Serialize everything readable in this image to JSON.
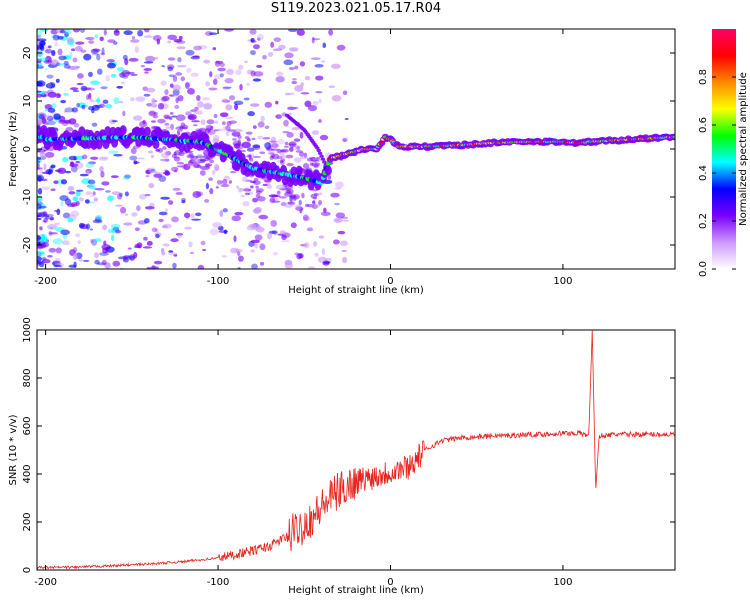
{
  "chart_data": [
    {
      "type": "heatmap",
      "title": "S119.2023.021.05.17.R04",
      "xlabel": "Height of straight line (km)",
      "ylabel": "Frequency (Hz)",
      "xlim": [
        -205,
        165
      ],
      "ylim": [
        -25,
        25
      ],
      "x_ticks": [
        -200,
        -100,
        0,
        100
      ],
      "y_ticks": [
        -20,
        -10,
        0,
        10,
        20
      ],
      "colorbar": {
        "label": "Normalized spectral amplitude",
        "range": [
          0.0,
          1.0
        ],
        "ticks": [
          "0.0",
          "0.2",
          "0.4",
          "0.6",
          "0.8"
        ],
        "colors": [
          "#ffffff",
          "#cc99ff",
          "#7a00ff",
          "#0000ff",
          "#00ffff",
          "#00ff00",
          "#ffff00",
          "#ff8800",
          "#ff0000",
          "#ff0066"
        ]
      },
      "ridge": [
        {
          "x": -200,
          "y": 2
        },
        {
          "x": -150,
          "y": 2.5
        },
        {
          "x": -130,
          "y": 2
        },
        {
          "x": -110,
          "y": 1.5
        },
        {
          "x": -95,
          "y": -1
        },
        {
          "x": -80,
          "y": -4
        },
        {
          "x": -65,
          "y": -5
        },
        {
          "x": -50,
          "y": -6
        },
        {
          "x": -40,
          "y": -7
        },
        {
          "x": -35,
          "y": -2
        },
        {
          "x": -25,
          "y": -1
        },
        {
          "x": -15,
          "y": 0
        },
        {
          "x": -8,
          "y": 0
        },
        {
          "x": -3,
          "y": 2.5
        },
        {
          "x": 0,
          "y": 2
        },
        {
          "x": 5,
          "y": 0.5
        },
        {
          "x": 20,
          "y": 0.5
        },
        {
          "x": 40,
          "y": 0.8
        },
        {
          "x": 60,
          "y": 1.3
        },
        {
          "x": 80,
          "y": 1.5
        },
        {
          "x": 100,
          "y": 1.5
        },
        {
          "x": 110,
          "y": 1.2
        },
        {
          "x": 115,
          "y": 1.5
        },
        {
          "x": 130,
          "y": 1.8
        },
        {
          "x": 150,
          "y": 2.2
        },
        {
          "x": 165,
          "y": 2.5
        }
      ],
      "branch": [
        {
          "x": -60,
          "y": 7
        },
        {
          "x": -50,
          "y": 4
        },
        {
          "x": -42,
          "y": 0
        },
        {
          "x": -38,
          "y": -3
        }
      ]
    },
    {
      "type": "line",
      "xlabel": "Height of straight line (km)",
      "ylabel": "SNR (10 * v/v)",
      "xlim": [
        -205,
        165
      ],
      "ylim": [
        0,
        1000
      ],
      "x_ticks": [
        -200,
        -100,
        0,
        100
      ],
      "y_ticks": [
        0,
        200,
        400,
        600,
        800,
        1000
      ],
      "color": "#e8231f",
      "series": [
        {
          "x": [
            -205,
            -180,
            -160,
            -140,
            -120,
            -100,
            -80,
            -70,
            -60,
            -50,
            -45,
            -40,
            -35,
            -30,
            -25,
            -20,
            -15,
            -10,
            -5,
            0,
            5,
            10,
            15,
            20,
            25,
            30,
            40,
            50,
            60,
            70,
            80,
            90,
            100,
            110,
            115,
            117,
            119,
            121,
            125,
            130,
            140,
            150,
            160,
            165
          ],
          "y": [
            10,
            12,
            18,
            25,
            35,
            50,
            80,
            100,
            140,
            190,
            220,
            260,
            300,
            330,
            350,
            370,
            380,
            390,
            400,
            410,
            420,
            430,
            460,
            500,
            520,
            540,
            550,
            555,
            560,
            560,
            565,
            565,
            570,
            570,
            560,
            1000,
            330,
            560,
            560,
            565,
            565,
            565,
            565,
            565
          ]
        }
      ]
    }
  ]
}
